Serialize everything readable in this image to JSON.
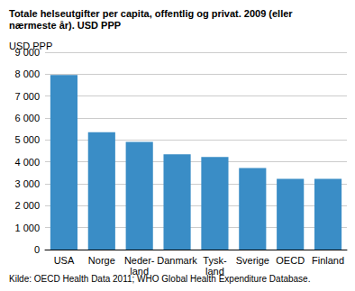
{
  "chart_data": {
    "type": "bar",
    "title": "Totale helseutgifter per capita, offentlig og privat. 2009 (eller\nnærmeste år). USD PPP",
    "ylabel": "USD PPP",
    "source": "Kilde: OECD Health Data 2011; WHO Global Health Expenditure Database.",
    "categories": [
      "USA",
      "Norge",
      "Neder-\nland",
      "Danmark",
      "Tysk-\nland",
      "Sverige",
      "OECD",
      "Finland"
    ],
    "values": [
      7960,
      5350,
      4910,
      4350,
      4220,
      3720,
      3230,
      3230
    ],
    "color": "#3a8dc6",
    "ylim": [
      0,
      9000
    ],
    "yticks": [
      0,
      {
        "value": 1000,
        "label": "1 000"
      },
      {
        "value": 2000,
        "label": "2 000"
      },
      {
        "value": 3000,
        "label": "3 000"
      },
      {
        "value": 4000,
        "label": "4 000"
      },
      {
        "value": 5000,
        "label": "5 000"
      },
      {
        "value": 6000,
        "label": "6 000"
      },
      {
        "value": 7000,
        "label": "7 000"
      },
      {
        "value": 8000,
        "label": "8 000"
      },
      {
        "value": 9000,
        "label": "9 000"
      }
    ],
    "grid": true
  }
}
